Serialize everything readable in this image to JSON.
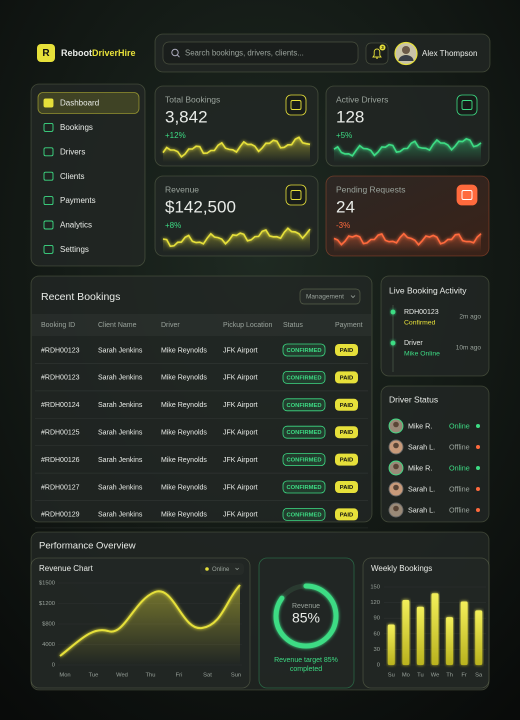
{
  "header": {
    "logo": "R",
    "brand_a": "Reboot",
    "brand_b": "DriverHire",
    "search_placeholder": "Search bookings, drivers, clients...",
    "notifications": "3",
    "user": "Alex Thompson"
  },
  "nav": [
    "Dashboard",
    "Bookings",
    "Drivers",
    "Clients",
    "Payments",
    "Analytics",
    "Settings"
  ],
  "stats": [
    {
      "label": "Total Bookings",
      "value": "3,842",
      "change": "+12%"
    },
    {
      "label": "Active Drivers",
      "value": "128",
      "change": "+5%"
    },
    {
      "label": "Revenue",
      "value": "$142,500",
      "change": "+8%"
    },
    {
      "label": "Pending Requests",
      "value": "24",
      "change": "-3%"
    }
  ],
  "recent_bookings": {
    "title": "Recent Bookings",
    "filter": "Management",
    "columns": [
      "Booking ID",
      "Client Name",
      "Driver",
      "Pickup Location",
      "Status",
      "Payment"
    ],
    "rows": [
      [
        "#RDH00123",
        "Sarah Jenkins",
        "Mike Reynolds",
        "JFK Airport",
        "CONFIRMED",
        "PAID"
      ],
      [
        "#RDH00123",
        "Sarah Jenkins",
        "Mike Reynolds",
        "JFK Airport",
        "CONFIRMED",
        "PAID"
      ],
      [
        "#RDH00124",
        "Sarah Jenkins",
        "Mike Reynolds",
        "JFK Airport",
        "CONFIRMED",
        "PAID"
      ],
      [
        "#RDH00125",
        "Sarah Jenkins",
        "Mike Reynolds",
        "JFK Airport",
        "CONFIRMED",
        "PAID"
      ],
      [
        "#RDH00126",
        "Sarah Jenkins",
        "Mike Reynolds",
        "JFK Airport",
        "CONFIRMED",
        "PAID"
      ],
      [
        "#RDH00127",
        "Sarah Jenkins",
        "Mike Reynolds",
        "JFK Airport",
        "CONFIRMED",
        "PAID"
      ],
      [
        "#RDH00129",
        "Sarah Jenkins",
        "Mike Reynolds",
        "JFK Airport",
        "CONFIRMED",
        "PAID"
      ]
    ]
  },
  "live_activity": {
    "title": "Live Booking Activity",
    "items": [
      {
        "line1": "RDH00123",
        "line2": "Confirmed",
        "time": "2m ago"
      },
      {
        "line1": "Driver",
        "line2": "Mike Online",
        "time": "10m ago"
      }
    ]
  },
  "driver_status": {
    "title": "Driver Status",
    "drivers": [
      {
        "name": "Mike R.",
        "status": "Online"
      },
      {
        "name": "Sarah L.",
        "status": "Offline"
      },
      {
        "name": "Mike R.",
        "status": "Online"
      },
      {
        "name": "Sarah L.",
        "status": "Offline"
      },
      {
        "name": "Sarah L.",
        "status": "Offline"
      }
    ]
  },
  "performance": {
    "title": "Performance Overview",
    "revenue_chart": {
      "title": "Revenue Chart",
      "filter": "Online",
      "y_labels": [
        "$1500",
        "$1200",
        "$800",
        "4000",
        "0"
      ],
      "x_labels": [
        "Mon",
        "Tue",
        "Wed",
        "Thu",
        "Fri",
        "Sat",
        "Sun"
      ]
    },
    "target": {
      "label": "Revenue",
      "percent": 85,
      "percent_label": "85%",
      "caption_1": "Revenue target 85%",
      "caption_2": "completed"
    },
    "weekly": {
      "title": "Weekly Bookings",
      "categories": [
        "Su",
        "Mo",
        "Tu",
        "We",
        "Th",
        "Fr",
        "Sa"
      ],
      "values": [
        78,
        125,
        112,
        138,
        92,
        122,
        105
      ],
      "ylim": [
        0,
        150
      ],
      "yticks": [
        0,
        30,
        60,
        90,
        120,
        150
      ]
    }
  }
}
